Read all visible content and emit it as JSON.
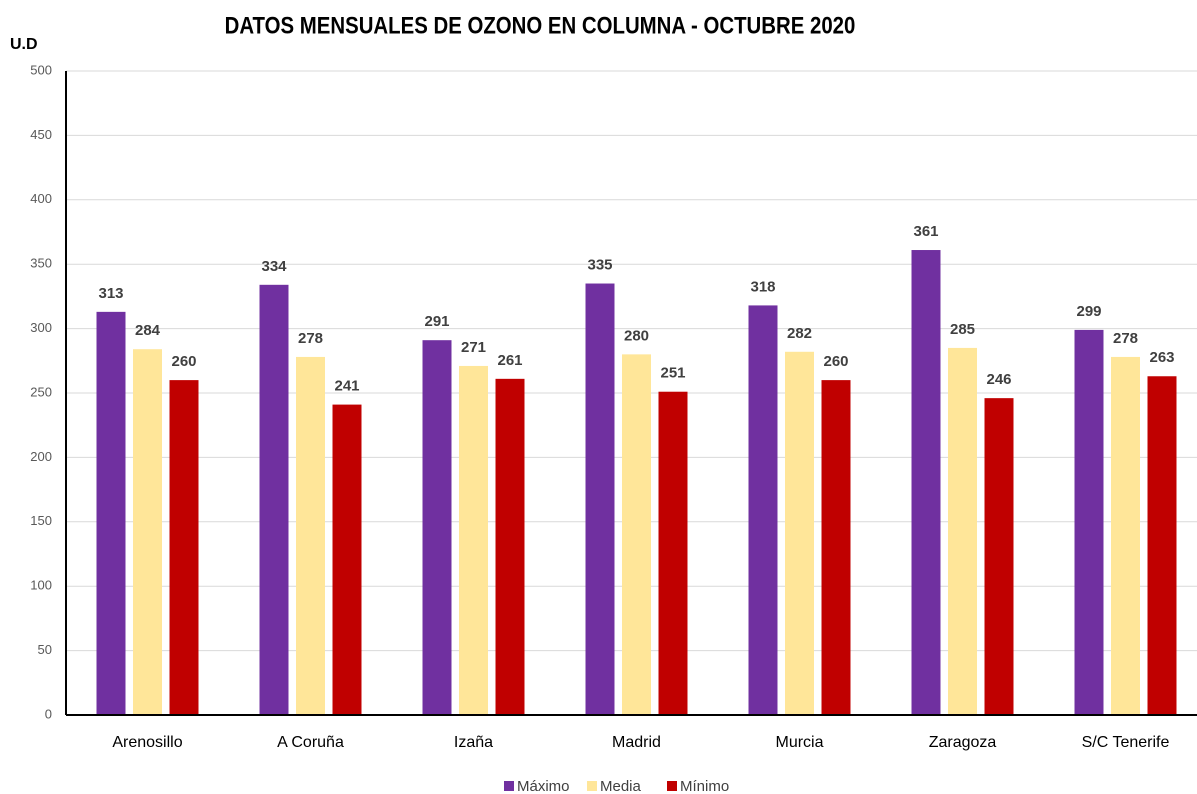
{
  "chart_data": {
    "type": "bar",
    "title": "DATOS MENSUALES DE OZONO EN COLUMNA - OCTUBRE 2020",
    "y_label": "U.D",
    "categories": [
      "Arenosillo",
      "A Coruña",
      "Izaña",
      "Madrid",
      "Murcia",
      "Zaragoza",
      "S/C Tenerife"
    ],
    "series": [
      {
        "name": "Máximo",
        "color": "#7030a0",
        "values": [
          313,
          334,
          291,
          335,
          318,
          361,
          299
        ]
      },
      {
        "name": "Media",
        "color": "#ffe699",
        "values": [
          284,
          278,
          271,
          280,
          282,
          285,
          278
        ]
      },
      {
        "name": "Mínimo",
        "color": "#c00000",
        "values": [
          260,
          241,
          261,
          251,
          260,
          246,
          263
        ]
      }
    ],
    "ylim": [
      0,
      500
    ],
    "yticks": [
      0,
      50,
      100,
      150,
      200,
      250,
      300,
      350,
      400,
      450,
      500
    ],
    "grid": true,
    "legend": "bottom"
  }
}
